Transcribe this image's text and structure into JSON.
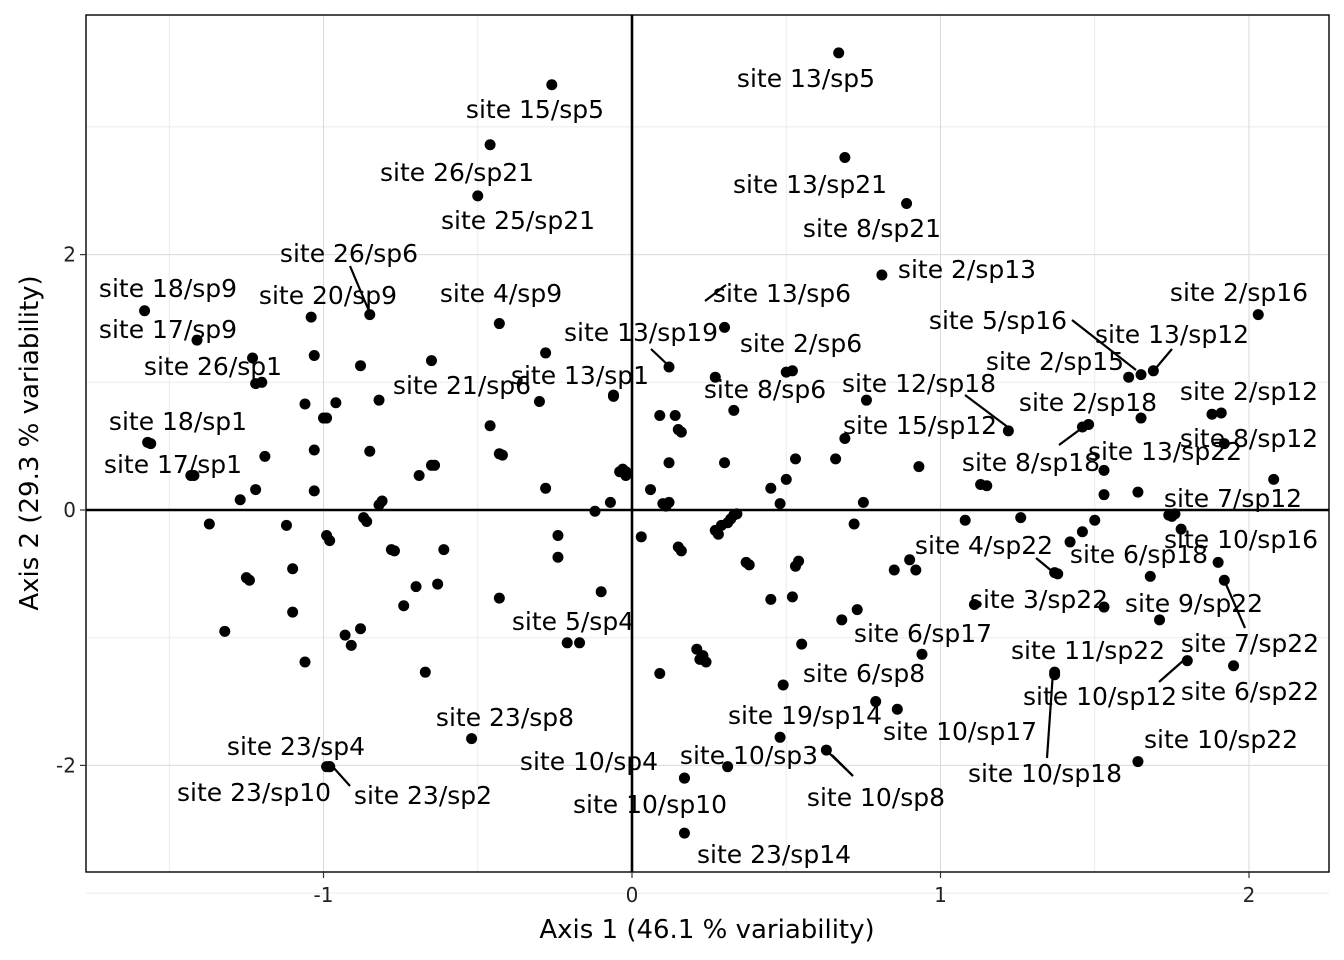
{
  "chart_data": {
    "type": "scatter",
    "xlabel": "Axis 1 (46.1 % variability)",
    "ylabel": "Axis 2 (29.3 % variability)",
    "xlim": [
      -1.78,
      2.27
    ],
    "ylim": [
      -2.87,
      3.87
    ],
    "x_ticks": [
      -1,
      0,
      1,
      2
    ],
    "y_ticks": [
      -2,
      0,
      2
    ],
    "x_tick_labels": [
      "-1",
      "0",
      "1",
      "2"
    ],
    "y_tick_labels": [
      "-2",
      "0",
      "2"
    ],
    "grid": true,
    "reference_lines": {
      "x": 0,
      "y": 0
    },
    "labeled_points": [
      {
        "label": "site 13/sp5",
        "x": 0.67,
        "y": 3.58
      },
      {
        "label": "site 15/sp5",
        "x": -0.26,
        "y": 3.33
      },
      {
        "label": "site 26/sp21",
        "x": -0.46,
        "y": 2.86
      },
      {
        "label": "site 25/sp21",
        "x": -0.5,
        "y": 2.46
      },
      {
        "label": "site 13/sp21",
        "x": 0.69,
        "y": 2.76
      },
      {
        "label": "site 8/sp21",
        "x": 0.89,
        "y": 2.4
      },
      {
        "label": "site 2/sp13",
        "x": 0.81,
        "y": 1.84
      },
      {
        "label": "site 26/sp6",
        "x": -0.85,
        "y": 1.53
      },
      {
        "label": "site 20/sp9",
        "x": -1.04,
        "y": 1.51
      },
      {
        "label": "site 4/sp9",
        "x": -0.43,
        "y": 1.46
      },
      {
        "label": "site 13/sp6",
        "x": 0.3,
        "y": 1.43
      },
      {
        "label": "site 18/sp9",
        "x": -1.58,
        "y": 1.56
      },
      {
        "label": "site 17/sp9",
        "x": -1.41,
        "y": 1.33
      },
      {
        "label": "site 2/sp16",
        "x": 2.03,
        "y": 1.53
      },
      {
        "label": "site 5/sp16",
        "x": 1.65,
        "y": 1.06
      },
      {
        "label": "site 13/sp12",
        "x": 1.69,
        "y": 1.09
      },
      {
        "label": "site 13/sp19",
        "x": 0.12,
        "y": 1.12
      },
      {
        "label": "site 2/sp6",
        "x": 0.5,
        "y": 1.08
      },
      {
        "label": "site 26/sp1",
        "x": -1.22,
        "y": 0.99
      },
      {
        "label": "site 13/sp1",
        "x": -0.06,
        "y": 0.89
      },
      {
        "label": "site 21/sp6",
        "x": -0.3,
        "y": 0.85
      },
      {
        "label": "site 2/sp15",
        "x": 1.61,
        "y": 1.04
      },
      {
        "label": "site 12/sp18",
        "x": 1.22,
        "y": 0.62
      },
      {
        "label": "site 8/sp6",
        "x": 0.33,
        "y": 0.78
      },
      {
        "label": "site 2/sp12",
        "x": 1.91,
        "y": 0.76
      },
      {
        "label": "site 2/sp18",
        "x": 1.48,
        "y": 0.67
      },
      {
        "label": "site 15/sp12",
        "x": 0.69,
        "y": 0.56
      },
      {
        "label": "site 8/sp12",
        "x": 1.92,
        "y": 0.52
      },
      {
        "label": "site 18/sp1",
        "x": -1.57,
        "y": 0.53
      },
      {
        "label": "site 13/sp22",
        "x": 1.53,
        "y": 0.31
      },
      {
        "label": "site 8/sp18",
        "x": 1.46,
        "y": 0.65
      },
      {
        "label": "site 17/sp1",
        "x": -1.43,
        "y": 0.27
      },
      {
        "label": "site 7/sp12",
        "x": 2.08,
        "y": 0.24
      },
      {
        "label": "site 10/sp16",
        "x": 1.78,
        "y": -0.15
      },
      {
        "label": "site 4/sp22",
        "x": 1.38,
        "y": -0.5
      },
      {
        "label": "site 6/sp18",
        "x": 1.68,
        "y": -0.52
      },
      {
        "label": "site 3/sp22",
        "x": 1.11,
        "y": -0.74
      },
      {
        "label": "site 9/sp22",
        "x": 1.53,
        "y": -0.76
      },
      {
        "label": "site 6/sp17",
        "x": 0.94,
        "y": -1.13
      },
      {
        "label": "site 7/sp22",
        "x": 1.92,
        "y": -0.55
      },
      {
        "label": "site 11/sp22",
        "x": 1.37,
        "y": -1.27
      },
      {
        "label": "site 10/sp12",
        "x": 1.8,
        "y": -1.18
      },
      {
        "label": "site 6/sp22",
        "x": 1.95,
        "y": -1.22
      },
      {
        "label": "site 5/sp4",
        "x": -0.1,
        "y": -0.64
      },
      {
        "label": "site 6/sp8",
        "x": 0.79,
        "y": -1.5
      },
      {
        "label": "site 10/sp17",
        "x": 0.86,
        "y": -1.56
      },
      {
        "label": "site 19/sp14",
        "x": 0.48,
        "y": -1.78
      },
      {
        "label": "site 10/sp18",
        "x": 1.37,
        "y": -1.29
      },
      {
        "label": "site 10/sp22",
        "x": 1.64,
        "y": -1.97
      },
      {
        "label": "site 23/sp8",
        "x": -0.52,
        "y": -1.79
      },
      {
        "label": "site 23/sp4",
        "x": -0.98,
        "y": -2.01
      },
      {
        "label": "site 10/sp3",
        "x": 0.31,
        "y": -2.01
      },
      {
        "label": "site 10/sp4",
        "x": 0.17,
        "y": -2.1
      },
      {
        "label": "site 10/sp8",
        "x": 0.63,
        "y": -1.88
      },
      {
        "label": "site 23/sp10",
        "x": -0.99,
        "y": -2.01
      },
      {
        "label": "site 23/sp2",
        "x": -0.98,
        "y": -2.01
      },
      {
        "label": "site 10/sp10",
        "x": 0.17,
        "y": -2.1
      },
      {
        "label": "site 23/sp14",
        "x": 0.17,
        "y": -2.53
      }
    ],
    "unlabeled_points": [
      [
        -1.56,
        0.52
      ],
      [
        -1.42,
        0.27
      ],
      [
        -1.37,
        -0.11
      ],
      [
        -1.27,
        0.08
      ],
      [
        -1.25,
        -0.53
      ],
      [
        -1.24,
        -0.55
      ],
      [
        -1.23,
        1.19
      ],
      [
        -1.22,
        0.16
      ],
      [
        -1.2,
        1.0
      ],
      [
        -1.19,
        0.42
      ],
      [
        -1.32,
        -0.95
      ],
      [
        -1.12,
        -0.12
      ],
      [
        -1.1,
        -0.46
      ],
      [
        -1.1,
        -0.8
      ],
      [
        -1.06,
        0.83
      ],
      [
        -1.06,
        -1.19
      ],
      [
        -1.03,
        0.47
      ],
      [
        -1.03,
        1.21
      ],
      [
        -1.03,
        0.15
      ],
      [
        -1.0,
        0.72
      ],
      [
        -0.99,
        0.72
      ],
      [
        -0.99,
        -0.2
      ],
      [
        -0.98,
        -0.24
      ],
      [
        -0.96,
        0.84
      ],
      [
        -0.93,
        -0.98
      ],
      [
        -0.91,
        -1.06
      ],
      [
        -0.88,
        -0.93
      ],
      [
        -0.88,
        1.13
      ],
      [
        -0.87,
        -0.06
      ],
      [
        -0.86,
        -0.09
      ],
      [
        -0.85,
        0.46
      ],
      [
        -0.82,
        0.86
      ],
      [
        -0.82,
        0.04
      ],
      [
        -0.81,
        0.07
      ],
      [
        -0.78,
        -0.31
      ],
      [
        -0.77,
        -0.32
      ],
      [
        -0.74,
        -0.75
      ],
      [
        -0.7,
        -0.6
      ],
      [
        -0.69,
        0.27
      ],
      [
        -0.67,
        -1.27
      ],
      [
        -0.65,
        1.17
      ],
      [
        -0.65,
        0.35
      ],
      [
        -0.64,
        0.35
      ],
      [
        -0.63,
        -0.58
      ],
      [
        -0.61,
        -0.31
      ],
      [
        -0.46,
        0.66
      ],
      [
        -0.43,
        0.44
      ],
      [
        -0.42,
        0.43
      ],
      [
        -0.43,
        -0.69
      ],
      [
        -0.28,
        1.23
      ],
      [
        -0.28,
        0.17
      ],
      [
        -0.24,
        -0.2
      ],
      [
        -0.24,
        -0.37
      ],
      [
        -0.21,
        -1.04
      ],
      [
        -0.17,
        -1.04
      ],
      [
        -0.12,
        -0.01
      ],
      [
        -0.07,
        0.06
      ],
      [
        -0.06,
        0.9
      ],
      [
        -0.04,
        0.3
      ],
      [
        -0.03,
        0.3
      ],
      [
        -0.03,
        0.32
      ],
      [
        -0.02,
        0.3
      ],
      [
        -0.02,
        0.27
      ],
      [
        0.03,
        -0.21
      ],
      [
        0.06,
        0.16
      ],
      [
        0.09,
        -1.28
      ],
      [
        0.09,
        0.74
      ],
      [
        0.1,
        0.05
      ],
      [
        0.11,
        0.03
      ],
      [
        0.12,
        0.06
      ],
      [
        0.12,
        0.37
      ],
      [
        0.14,
        0.74
      ],
      [
        0.15,
        0.63
      ],
      [
        0.15,
        -0.29
      ],
      [
        0.16,
        0.61
      ],
      [
        0.16,
        -0.32
      ],
      [
        0.21,
        -1.09
      ],
      [
        0.22,
        -1.17
      ],
      [
        0.23,
        -1.14
      ],
      [
        0.24,
        -1.19
      ],
      [
        0.27,
        1.04
      ],
      [
        0.27,
        -0.16
      ],
      [
        0.28,
        -0.19
      ],
      [
        0.29,
        -0.12
      ],
      [
        0.3,
        0.37
      ],
      [
        0.31,
        -0.1
      ],
      [
        0.32,
        -0.07
      ],
      [
        0.33,
        -0.04
      ],
      [
        0.34,
        -0.03
      ],
      [
        0.37,
        -0.41
      ],
      [
        0.38,
        -0.43
      ],
      [
        0.45,
        0.17
      ],
      [
        0.45,
        -0.7
      ],
      [
        0.48,
        0.05
      ],
      [
        0.49,
        -1.37
      ],
      [
        0.5,
        0.24
      ],
      [
        0.52,
        1.09
      ],
      [
        0.52,
        -0.68
      ],
      [
        0.53,
        0.4
      ],
      [
        0.53,
        -0.44
      ],
      [
        0.54,
        -0.4
      ],
      [
        0.55,
        -1.05
      ],
      [
        0.66,
        0.4
      ],
      [
        0.68,
        -0.86
      ],
      [
        0.72,
        -0.11
      ],
      [
        0.73,
        -0.78
      ],
      [
        0.75,
        0.06
      ],
      [
        0.76,
        0.86
      ],
      [
        0.9,
        -0.39
      ],
      [
        0.92,
        -0.47
      ],
      [
        0.85,
        -0.47
      ],
      [
        0.93,
        0.34
      ],
      [
        1.08,
        -0.08
      ],
      [
        1.15,
        0.19
      ],
      [
        1.13,
        0.2
      ],
      [
        1.26,
        -0.06
      ],
      [
        1.37,
        -0.49
      ],
      [
        1.42,
        -0.25
      ],
      [
        1.46,
        -0.17
      ],
      [
        1.5,
        -0.08
      ],
      [
        1.53,
        0.12
      ],
      [
        1.64,
        0.14
      ],
      [
        1.65,
        0.72
      ],
      [
        1.71,
        -0.86
      ],
      [
        1.74,
        -0.04
      ],
      [
        1.75,
        -0.05
      ],
      [
        1.76,
        -0.03
      ],
      [
        1.88,
        0.75
      ],
      [
        1.9,
        -0.41
      ]
    ]
  }
}
